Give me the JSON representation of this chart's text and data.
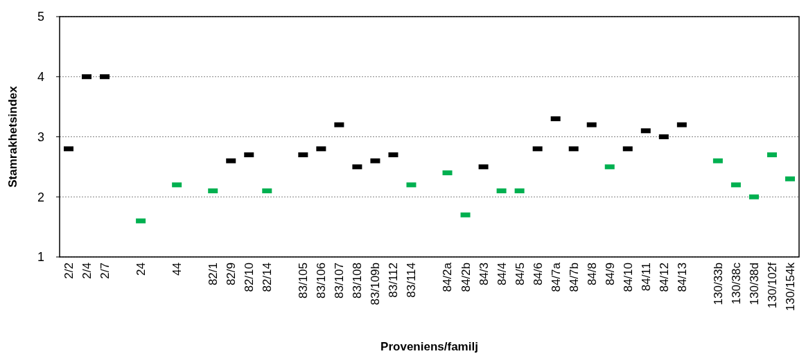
{
  "chart_data": {
    "type": "scatter",
    "xlabel": "Proveniens/familj",
    "ylabel": "Stamrakhetsindex",
    "marker": "square",
    "categories": [
      "2/2",
      "2/4",
      "2/7",
      null,
      "24",
      null,
      "44",
      null,
      "82/1",
      "82/9",
      "82/10",
      "82/14",
      null,
      "83/105",
      "83/106",
      "83/107",
      "83/108",
      "83/109b",
      "83/112",
      "83/114",
      null,
      "84/2a",
      "84/2b",
      "84/3",
      "84/4",
      "84/5",
      "84/6",
      "84/7a",
      "84/7b",
      "84/8",
      "84/9",
      "84/10",
      "84/11",
      "84/12",
      "84/13",
      null,
      "130/33b",
      "130/38c",
      "130/38d",
      "130/102f",
      "130/154k"
    ],
    "series": [
      {
        "color": "#000000",
        "x": [
          "2/2",
          "2/4",
          "2/7",
          "82/9",
          "82/10",
          "83/105",
          "83/106",
          "83/107",
          "83/108",
          "83/109b",
          "83/112",
          "84/3",
          "84/6",
          "84/7a",
          "84/7b",
          "84/8",
          "84/10",
          "84/11",
          "84/12",
          "84/13"
        ],
        "values": [
          2.8,
          4.0,
          4.0,
          2.6,
          2.7,
          2.7,
          2.8,
          3.2,
          2.5,
          2.6,
          2.7,
          2.5,
          2.8,
          3.3,
          2.8,
          3.2,
          2.8,
          3.1,
          3.0,
          3.2
        ]
      },
      {
        "color": "#00b050",
        "x": [
          "24",
          "44",
          "82/1",
          "82/14",
          "83/114",
          "84/2a",
          "84/2b",
          "84/4",
          "84/5",
          "84/9",
          "130/33b",
          "130/38c",
          "130/38d",
          "130/102f",
          "130/154k"
        ],
        "values": [
          1.6,
          2.2,
          2.1,
          2.1,
          2.2,
          2.4,
          1.7,
          2.1,
          2.1,
          2.5,
          2.6,
          2.2,
          2.0,
          2.7,
          2.3
        ]
      }
    ],
    "ylim": [
      1,
      5
    ],
    "yticks": [
      1,
      2,
      3,
      4,
      5
    ],
    "grid": "y"
  }
}
